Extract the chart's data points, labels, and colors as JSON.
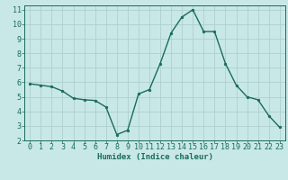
{
  "x": [
    0,
    1,
    2,
    3,
    4,
    5,
    6,
    7,
    8,
    9,
    10,
    11,
    12,
    13,
    14,
    15,
    16,
    17,
    18,
    19,
    20,
    21,
    22,
    23
  ],
  "y": [
    5.9,
    5.8,
    5.7,
    5.4,
    4.9,
    4.8,
    4.75,
    4.3,
    2.4,
    2.7,
    5.2,
    5.5,
    7.3,
    9.4,
    10.5,
    11.0,
    9.5,
    9.5,
    7.3,
    5.8,
    5.0,
    4.8,
    3.7,
    2.9
  ],
  "line_color": "#1a6b5a",
  "marker_color": "#1a6b5a",
  "bg_color": "#c8e8e8",
  "grid_color": "#b0d0d0",
  "xlabel": "Humidex (Indice chaleur)",
  "xlim": [
    -0.5,
    23.5
  ],
  "ylim": [
    2,
    11.3
  ],
  "yticks": [
    2,
    3,
    4,
    5,
    6,
    7,
    8,
    9,
    10,
    11
  ],
  "xticks": [
    0,
    1,
    2,
    3,
    4,
    5,
    6,
    7,
    8,
    9,
    10,
    11,
    12,
    13,
    14,
    15,
    16,
    17,
    18,
    19,
    20,
    21,
    22,
    23
  ],
  "axis_color": "#1a6b5a",
  "label_color": "#1a6b5a",
  "xlabel_fontsize": 6.5,
  "tick_fontsize": 6.0,
  "linewidth": 1.0,
  "markersize": 2.0
}
